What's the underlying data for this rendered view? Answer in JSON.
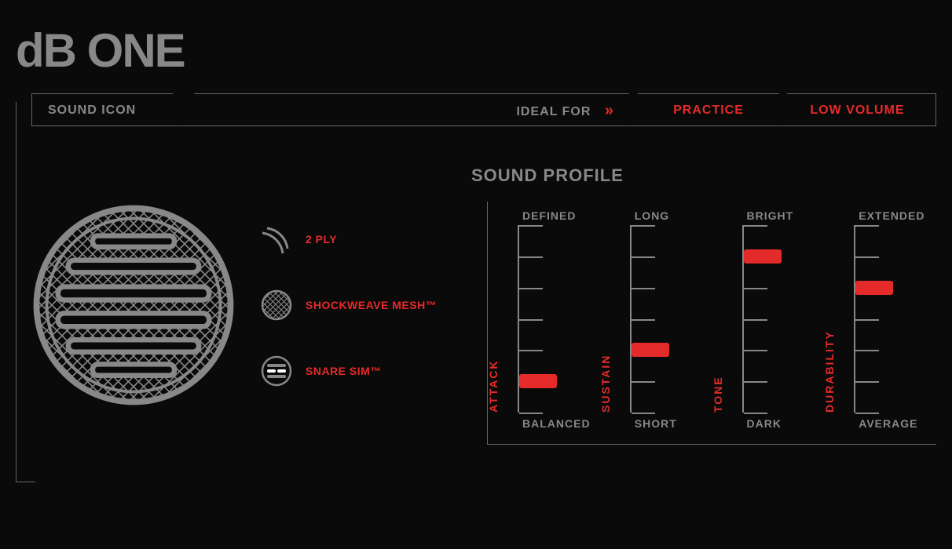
{
  "title": "dB ONE",
  "header": {
    "sound_icon_label": "SOUND ICON",
    "ideal_for_label": "IDEAL FOR",
    "tags": [
      "PRACTICE",
      "LOW VOLUME"
    ]
  },
  "features": [
    {
      "name": "ply-icon",
      "label": "2 PLY"
    },
    {
      "name": "shockweave-icon",
      "label": "SHOCKWEAVE MESH™"
    },
    {
      "name": "snare-sim-icon",
      "label": "SNARE SIM™"
    }
  ],
  "sound_profile": {
    "title": "SOUND PROFILE",
    "ticks": 7,
    "gauges": [
      {
        "name": "ATTACK",
        "top": "DEFINED",
        "bottom": "BALANCED",
        "value": 2,
        "max": 7
      },
      {
        "name": "SUSTAIN",
        "top": "LONG",
        "bottom": "SHORT",
        "value": 3,
        "max": 7
      },
      {
        "name": "TONE",
        "top": "BRIGHT",
        "bottom": "DARK",
        "value": 6,
        "max": 7
      },
      {
        "name": "DURABILITY",
        "top": "EXTENDED",
        "bottom": "AVERAGE",
        "value": 5,
        "max": 7
      }
    ]
  },
  "colors": {
    "accent": "#e52a2a",
    "fg": "#888888",
    "line": "#666666",
    "bg": "#0a0a0a"
  }
}
